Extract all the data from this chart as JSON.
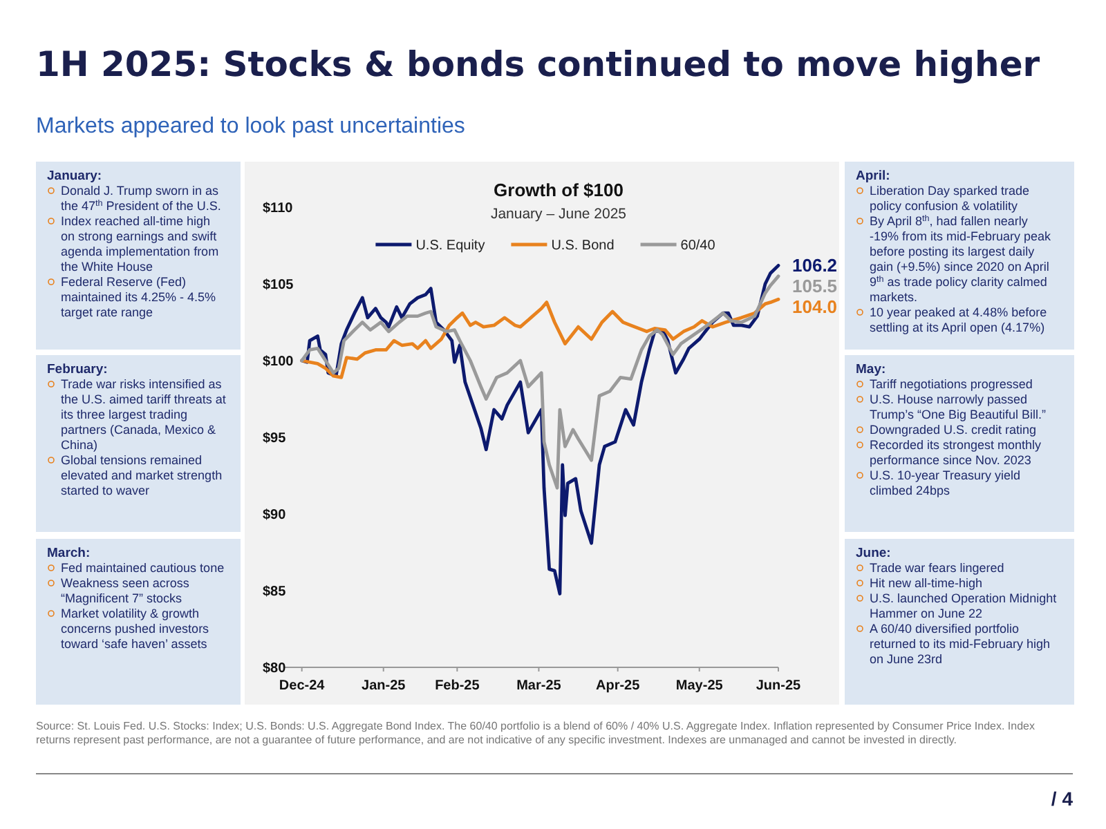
{
  "chart_data": {
    "type": "line",
    "title": "Growth of $100",
    "subtitle": "January – June 2025",
    "xlim": [
      "2024-12-24",
      "2025-06-30"
    ],
    "xticks": [
      {
        "value": "2024-12-31",
        "label": "Dec-24"
      },
      {
        "value": "2025-01-31",
        "label": "Jan-25"
      },
      {
        "value": "2025-02-28",
        "label": "Feb-25"
      },
      {
        "value": "2025-03-31",
        "label": "Mar-25"
      },
      {
        "value": "2025-04-30",
        "label": "Apr-25"
      },
      {
        "value": "2025-05-31",
        "label": "May-25"
      },
      {
        "value": "2025-06-30",
        "label": "Jun-25"
      }
    ],
    "ylim": [
      80,
      110
    ],
    "yticks": [
      {
        "value": 80,
        "label": "$80"
      },
      {
        "value": 85,
        "label": "$85"
      },
      {
        "value": 90,
        "label": "$90"
      },
      {
        "value": 95,
        "label": "$95"
      },
      {
        "value": 100,
        "label": "$100"
      },
      {
        "value": 105,
        "label": "$105"
      },
      {
        "value": 110,
        "label": "$110"
      }
    ],
    "grid": false,
    "legend": "top",
    "marker": "none",
    "line_style": "solid",
    "series": [
      {
        "name": "U.S. Equity",
        "color": "#0d1a6e",
        "x": [
          "2024-12-31",
          "2025-01-02",
          "2025-01-03",
          "2025-01-06",
          "2025-01-07",
          "2025-01-09",
          "2025-01-10",
          "2025-01-13",
          "2025-01-15",
          "2025-01-17",
          "2025-01-20",
          "2025-01-23",
          "2025-01-25",
          "2025-01-28",
          "2025-01-30",
          "2025-02-01",
          "2025-02-02",
          "2025-02-05",
          "2025-02-07",
          "2025-02-10",
          "2025-02-13",
          "2025-02-16",
          "2025-02-18",
          "2025-02-20",
          "2025-02-23",
          "2025-02-26",
          "2025-02-27",
          "2025-03-01",
          "2025-03-03",
          "2025-03-06",
          "2025-03-09",
          "2025-03-11",
          "2025-03-14",
          "2025-03-17",
          "2025-03-19",
          "2025-03-24",
          "2025-03-27",
          "2025-04-01",
          "2025-04-02",
          "2025-04-04",
          "2025-04-06",
          "2025-04-08",
          "2025-04-09",
          "2025-04-10",
          "2025-04-11",
          "2025-04-14",
          "2025-04-16",
          "2025-04-20",
          "2025-04-23",
          "2025-04-25",
          "2025-04-29",
          "2025-05-03",
          "2025-05-06",
          "2025-05-09",
          "2025-05-12",
          "2025-05-14",
          "2025-05-17",
          "2025-05-19",
          "2025-05-22",
          "2025-05-25",
          "2025-05-27",
          "2025-05-31",
          "2025-06-05",
          "2025-06-09",
          "2025-06-11",
          "2025-06-13",
          "2025-06-16",
          "2025-06-19",
          "2025-06-22",
          "2025-06-25",
          "2025-06-27",
          "2025-06-30"
        ],
        "values": [
          100.0,
          99.9,
          101.3,
          101.6,
          100.7,
          100.4,
          99.2,
          99.0,
          101.1,
          102.0,
          103.1,
          104.1,
          102.8,
          103.4,
          102.8,
          102.5,
          102.2,
          103.5,
          102.8,
          103.7,
          104.1,
          104.3,
          104.7,
          102.5,
          102.0,
          101.3,
          99.9,
          101.0,
          98.6,
          97.1,
          95.6,
          94.2,
          96.8,
          96.2,
          97.1,
          98.6,
          95.3,
          96.8,
          91.7,
          86.4,
          86.3,
          84.8,
          93.2,
          89.9,
          92.0,
          92.3,
          90.2,
          88.1,
          93.2,
          94.4,
          94.7,
          96.8,
          95.8,
          98.6,
          100.7,
          101.9,
          102.0,
          101.3,
          99.2,
          100.1,
          100.8,
          101.4,
          102.5,
          103.1,
          103.1,
          102.3,
          102.3,
          102.2,
          102.9,
          105.0,
          105.7,
          106.2
        ]
      },
      {
        "name": "U.S. Bond",
        "color": "#e8821e",
        "x": [
          "2024-12-31",
          "2025-01-06",
          "2025-01-09",
          "2025-01-12",
          "2025-01-15",
          "2025-01-17",
          "2025-01-21",
          "2025-01-24",
          "2025-01-28",
          "2025-02-01",
          "2025-02-04",
          "2025-02-07",
          "2025-02-11",
          "2025-02-13",
          "2025-02-16",
          "2025-02-18",
          "2025-02-22",
          "2025-02-25",
          "2025-02-28",
          "2025-03-02",
          "2025-03-05",
          "2025-03-07",
          "2025-03-10",
          "2025-03-14",
          "2025-03-18",
          "2025-03-22",
          "2025-03-24",
          "2025-03-28",
          "2025-04-01",
          "2025-04-03",
          "2025-04-06",
          "2025-04-10",
          "2025-04-15",
          "2025-04-20",
          "2025-04-24",
          "2025-04-28",
          "2025-05-02",
          "2025-05-05",
          "2025-05-11",
          "2025-05-14",
          "2025-05-18",
          "2025-05-21",
          "2025-05-25",
          "2025-05-29",
          "2025-06-01",
          "2025-06-05",
          "2025-06-10",
          "2025-06-16",
          "2025-06-21",
          "2025-06-25",
          "2025-06-27",
          "2025-06-30"
        ],
        "values": [
          100.0,
          99.8,
          99.5,
          99.0,
          98.9,
          100.2,
          100.1,
          100.5,
          100.7,
          100.7,
          101.3,
          101.0,
          101.1,
          100.8,
          101.3,
          100.8,
          101.4,
          102.3,
          102.8,
          103.1,
          102.3,
          102.5,
          102.2,
          102.3,
          102.8,
          102.3,
          102.2,
          102.8,
          103.4,
          103.8,
          102.5,
          101.1,
          102.2,
          101.4,
          102.5,
          103.2,
          102.5,
          102.3,
          101.9,
          102.1,
          102.0,
          101.4,
          101.9,
          102.2,
          102.6,
          102.2,
          102.5,
          102.8,
          103.1,
          103.7,
          103.8,
          104.0
        ]
      },
      {
        "name": "60/40",
        "color": "#9a9a9a",
        "x": [
          "2024-12-31",
          "2025-01-03",
          "2025-01-06",
          "2025-01-09",
          "2025-01-12",
          "2025-01-14",
          "2025-01-16",
          "2025-01-20",
          "2025-01-23",
          "2025-01-26",
          "2025-01-30",
          "2025-02-02",
          "2025-02-06",
          "2025-02-09",
          "2025-02-13",
          "2025-02-16",
          "2025-02-18",
          "2025-02-20",
          "2025-02-24",
          "2025-02-27",
          "2025-03-01",
          "2025-03-05",
          "2025-03-09",
          "2025-03-11",
          "2025-03-15",
          "2025-03-19",
          "2025-03-24",
          "2025-03-27",
          "2025-04-01",
          "2025-04-02",
          "2025-04-04",
          "2025-04-07",
          "2025-04-08",
          "2025-04-10",
          "2025-04-13",
          "2025-04-15",
          "2025-04-20",
          "2025-04-23",
          "2025-04-27",
          "2025-05-01",
          "2025-05-05",
          "2025-05-09",
          "2025-05-12",
          "2025-05-15",
          "2025-05-17",
          "2025-05-21",
          "2025-05-24",
          "2025-05-29",
          "2025-06-03",
          "2025-06-09",
          "2025-06-12",
          "2025-06-16",
          "2025-06-21",
          "2025-06-25",
          "2025-06-27",
          "2025-06-30"
        ],
        "values": [
          100.0,
          100.7,
          100.8,
          100.0,
          99.2,
          99.5,
          101.3,
          102.0,
          102.5,
          102.0,
          102.5,
          101.9,
          102.5,
          102.9,
          102.9,
          103.1,
          103.2,
          102.2,
          101.9,
          102.0,
          101.3,
          100.0,
          98.3,
          97.5,
          98.9,
          99.2,
          100.0,
          98.3,
          99.2,
          94.7,
          93.2,
          91.7,
          96.8,
          94.4,
          95.5,
          94.9,
          93.5,
          97.7,
          98.0,
          98.9,
          98.8,
          100.7,
          101.6,
          102.0,
          101.7,
          100.4,
          101.1,
          101.7,
          102.3,
          103.1,
          102.6,
          102.5,
          102.9,
          104.4,
          104.9,
          105.5
        ]
      }
    ],
    "annotations": [
      {
        "text": "106.2",
        "x": "2025-06-30",
        "y": 106.2
      },
      {
        "text": "105.5",
        "x": "2025-06-30",
        "y": 105.5
      },
      {
        "text": "104.0",
        "x": "2025-06-30",
        "y": 104.0
      },
      "1H 2025: Stocks & bonds continued to move higher",
      "Markets appeared to look past uncertainties",
      "January:\nDonald J. Trump sworn in as the 47$^{th}$ President of the U.S.\nIndex reached all-time high on strong earnings and swift agenda implementation from the White House\nFederal Reserve (Fed) maintained its 4.25% - 4.5% target rate range",
      "February:\nTrade war risks intensified as the U.S. aimed tariff threats at its three largest trading partners (Canada, Mexico & China)\nGlobal tensions remained elevated and market strength started to waver",
      "March:\nFed maintained cautious tone\nWeakness seen across “Magnificent 7” stocks\nMarket volatility & growth concerns pushed investors toward ‘safe haven’ assets",
      "April:\nLiberation Day sparked trade policy confusion & volatility\nBy April 8$^{th}$, had fallen nearly -19% from its mid-February peak before posting its largest daily gain (+9.5%) since 2020 on April 9$^{th}$ as trade policy clarity calmed markets.\n10 year peaked at 4.48% before settling at its April open (4.17%)",
      "May:\nTariff negotiations progressed\nU.S. House narrowly passed Trump’s “One Big Beautiful Bill.”\nDowngraded U.S. credit rating\nRecorded its strongest monthly performance since Nov. 2023\nU.S. 10-year Treasury yield climbed 24bps",
      "June:\nTrade war fears lingered\nHit new all-time-high\nU.S. launched Operation Midnight Hammer on June 22\nA 60/40 diversified portfolio returned to its mid-February high on June 23rd",
      "Source: St. Louis Fed. U.S. Stocks: Index; U.S. Bonds: U.S. Aggregate Bond Index. The 60/40 portfolio is a blend of 60% / 40% U.S. Aggregate Index. Inflation represented by Consumer Price Index. Index returns represent past performance, are not a guarantee of future performance, and are not indicative of any specific investment. Indexes are unmanaged and cannot be invested in directly.",
      "/ 4"
    ]
  }
}
